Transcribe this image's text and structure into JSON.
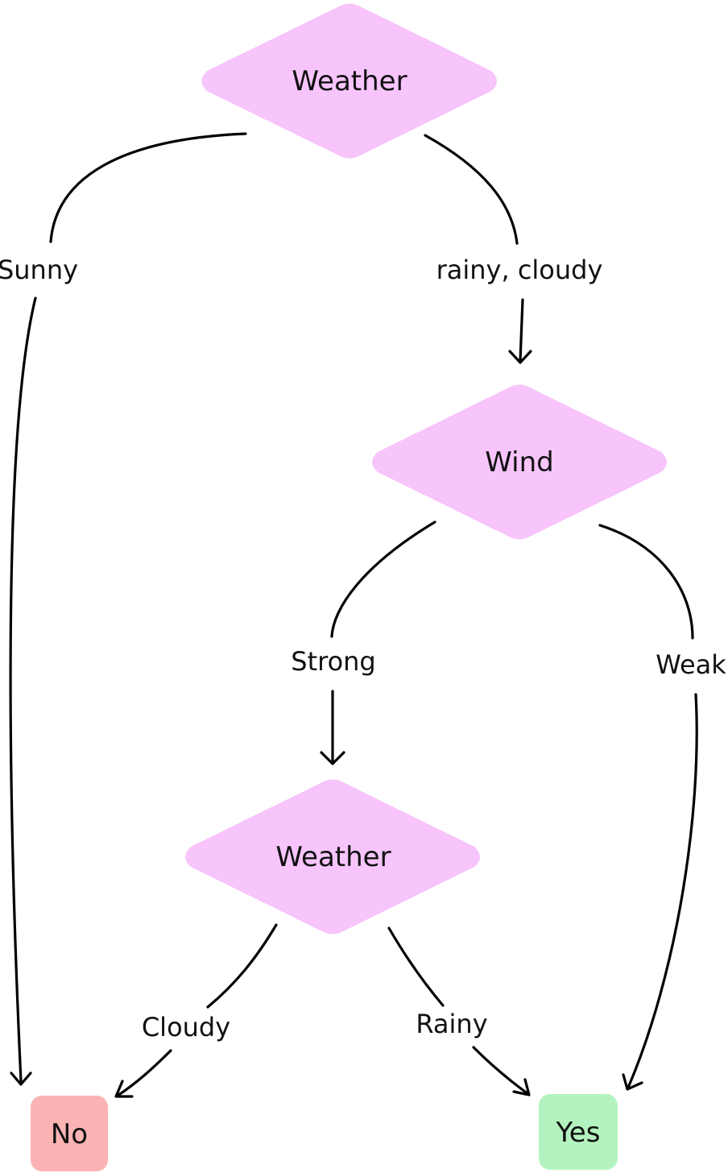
{
  "colors": {
    "decision_fill": "#f7c4fb",
    "no_fill": "#fbb3b3",
    "yes_fill": "#b3f3bf",
    "edge_stroke": "#000000",
    "text": "#111111"
  },
  "nodes": {
    "root_decision": "Weather",
    "wind_decision": "Wind",
    "second_weather_decision": "Weather",
    "outcome_no": "No",
    "outcome_yes": "Yes"
  },
  "edges": {
    "sunny": "Sunny",
    "rainy_cloudy": "rainy, cloudy",
    "strong": "Strong",
    "weak": "Weak",
    "cloudy": "Cloudy",
    "rainy": "Rainy"
  }
}
